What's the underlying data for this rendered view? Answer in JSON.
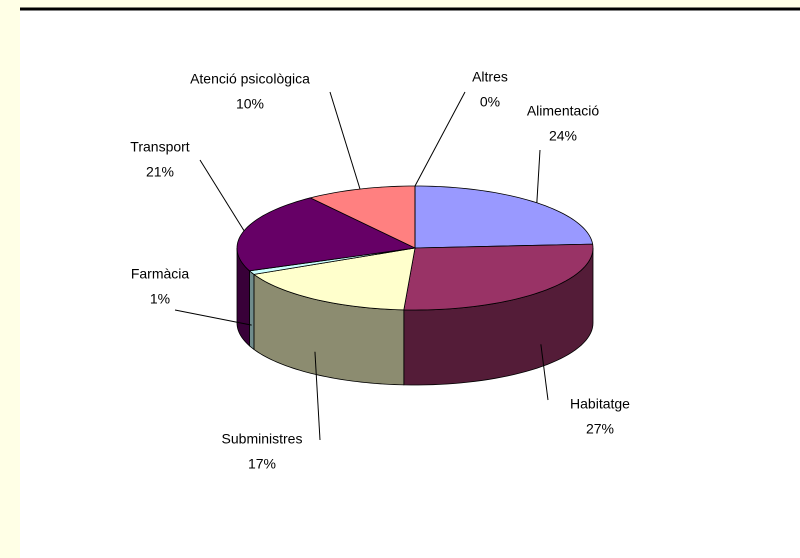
{
  "chart_data": {
    "type": "pie3d",
    "categories": [
      "Alimentació",
      "Habitatge",
      "Subministres",
      "Farmàcia",
      "Transport",
      "Atenció psicològica",
      "Altres"
    ],
    "values": [
      24,
      27,
      17,
      1,
      21,
      10,
      0
    ],
    "value_labels": [
      "24%",
      "27%",
      "17%",
      "1%",
      "21%",
      "10%",
      "0%"
    ],
    "colors": [
      "#9999ff",
      "#993366",
      "#ffffcc",
      "#ccffff",
      "#660066",
      "#ff8080",
      "#808000"
    ]
  }
}
